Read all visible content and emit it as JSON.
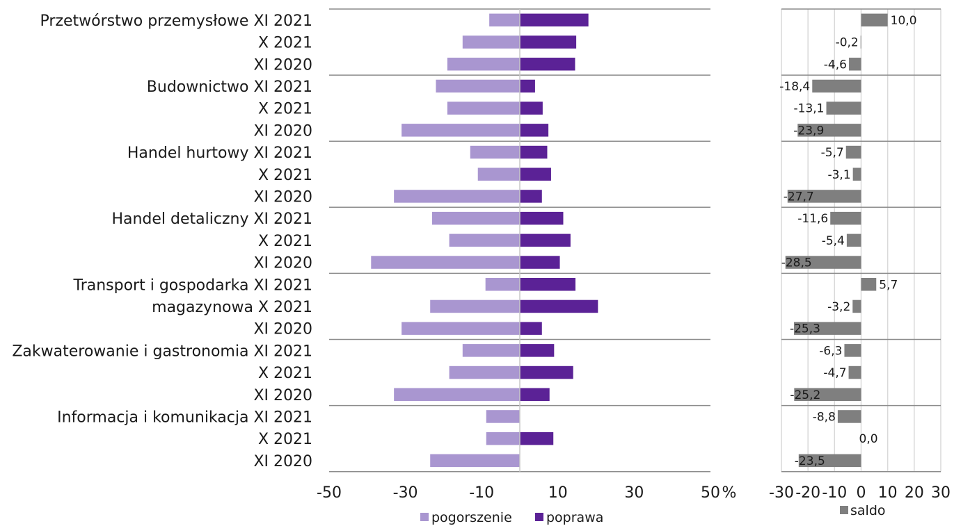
{
  "chart_data": [
    {
      "type": "bar",
      "orientation": "horizontal",
      "stacking": "diverging",
      "categories": [
        "Przetwórstwo przemysłowe XI 2021",
        "X 2021",
        "XI 2020",
        "Budownictwo XI 2021",
        "X 2021",
        "XI 2020",
        "Handel hurtowy XI 2021",
        "X 2021",
        "XI 2020",
        "Handel detaliczny XI 2021",
        "X 2021",
        "XI 2020",
        "Transport i gospodarka XI 2021",
        "magazynowa  X 2021",
        "XI 2020",
        "Zakwaterowanie i gastronomia XI 2021",
        "X 2021",
        "XI 2020",
        "Informacja i komunikacja XI 2021",
        "X 2021",
        "XI 2020"
      ],
      "series": [
        {
          "name": "pogorszenie",
          "color": "#a996d0",
          "values": [
            -8.0,
            -15.0,
            -19.0,
            -22.0,
            -19.0,
            -31.0,
            -13.0,
            -11.0,
            -33.0,
            -23.0,
            -18.5,
            -39.0,
            -9.0,
            -23.5,
            -31.0,
            -15.0,
            -18.5,
            -33.0,
            -8.8,
            -8.8,
            -23.5
          ]
        },
        {
          "name": "poprawa",
          "color": "#5b2296",
          "values": [
            18.0,
            14.8,
            14.5,
            4.0,
            6.0,
            7.5,
            7.2,
            8.2,
            5.8,
            11.4,
            13.3,
            10.5,
            14.6,
            20.5,
            5.8,
            9.0,
            14.0,
            7.8,
            0.0,
            8.8,
            0.0
          ]
        }
      ],
      "xlim": [
        -50,
        50
      ],
      "xticks": [
        "-50",
        "-30",
        "-10",
        "10",
        "30",
        "50"
      ],
      "unit_label": "%",
      "group_separators_after": [
        2,
        5,
        8,
        11,
        14,
        17
      ],
      "legend_position": "bottom"
    },
    {
      "type": "bar",
      "orientation": "horizontal",
      "series": [
        {
          "name": "saldo",
          "color": "#7f7f7f",
          "values": [
            10.0,
            -0.2,
            -4.6,
            -18.4,
            -13.1,
            -23.9,
            -5.7,
            -3.1,
            -27.7,
            -11.6,
            -5.4,
            -28.5,
            5.7,
            -3.2,
            -25.3,
            -6.3,
            -4.7,
            -25.2,
            -8.8,
            0.0,
            -23.5
          ]
        }
      ],
      "data_labels": [
        "10,0",
        "-0,2",
        "-4,6",
        "-18,4",
        "-13,1",
        "-23,9",
        "-5,7",
        "-3,1",
        "-27,7",
        "-11,6",
        "-5,4",
        "-28,5",
        "5,7",
        "-3,2",
        "-25,3",
        "-6,3",
        "-4,7",
        "-25,2",
        "-8,8",
        "0,0",
        "-23,5"
      ],
      "xlim": [
        -30,
        30
      ],
      "xticks": [
        "-30",
        "-20",
        "-10",
        "0",
        "10",
        "20",
        "30"
      ],
      "grid": true,
      "group_separators_after": [
        2,
        5,
        8,
        11,
        14,
        17
      ],
      "legend_position": "bottom"
    }
  ]
}
